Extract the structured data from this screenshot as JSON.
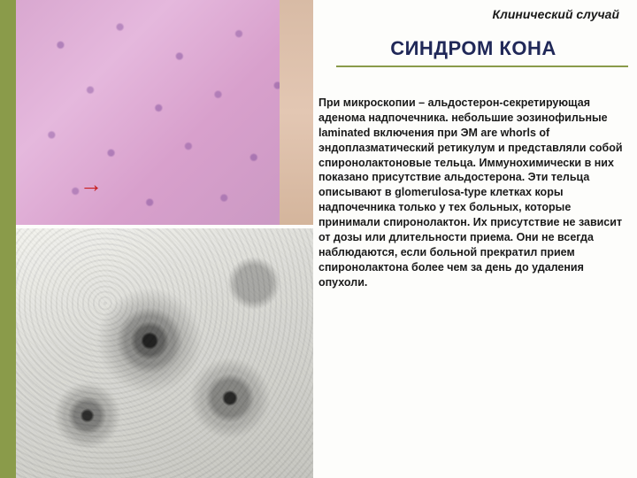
{
  "accent_color": "#8a9b4a",
  "title_color": "#202858",
  "header": {
    "overtitle": "Клинический случай",
    "title": "СИНДРОМ КОНА"
  },
  "body_text": "При микроскопии – альдостерон-секретирующая аденома надпочечника. небольшие эозинофильные laminated включения при ЭМ are whorls of эндоплазматический ретикулум и представляли собой спиронолактоновые тельца. Иммунохимически в них показано присутствие альдостерона. Эти тельца описывают в glomerulosa-type клетках коры надпочечника только у тех больных, которые принимали спиронолактон. Их присутствие не зависит от дозы или длительности приема. Они не всегда наблюдаются, если больной прекратил прием спиронолактона более чем за день до удаления опухоли.",
  "images": {
    "top": {
      "type": "histology-micrograph",
      "dominant_color": "#d9a8d0",
      "arrow_color": "#c81e1e"
    },
    "bottom": {
      "type": "electron-micrograph",
      "dominant_color": "#d0d0cc"
    }
  }
}
